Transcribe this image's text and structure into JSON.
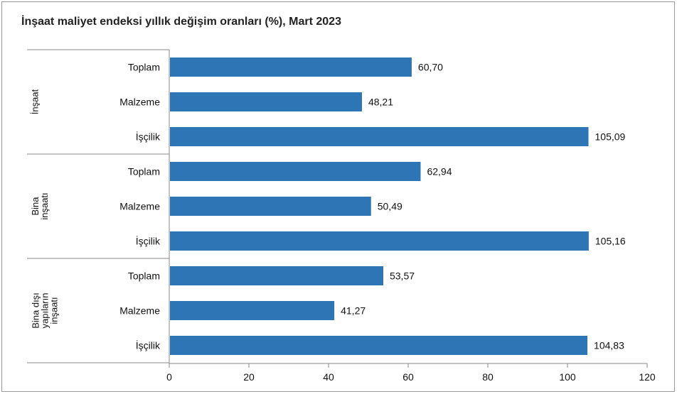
{
  "chart_data": {
    "type": "bar",
    "orientation": "horizontal",
    "title": "İnşaat maliyet endeksi yıllık değişim oranları (%), Mart 2023",
    "xlim": [
      0,
      120
    ],
    "xticks": [
      "0",
      "20",
      "40",
      "60",
      "80",
      "100",
      "120"
    ],
    "grid": false,
    "bar_color": "#2e75b6",
    "groups": [
      {
        "name_lines": [
          "İnşaat"
        ],
        "bars": [
          {
            "label": "Toplam",
            "value": 60.7,
            "display": "60,70"
          },
          {
            "label": "Malzeme",
            "value": 48.21,
            "display": "48,21"
          },
          {
            "label": "İşçilik",
            "value": 105.09,
            "display": "105,09"
          }
        ]
      },
      {
        "name_lines": [
          "Bina",
          "inşaatı"
        ],
        "bars": [
          {
            "label": "Toplam",
            "value": 62.94,
            "display": "62,94"
          },
          {
            "label": "Malzeme",
            "value": 50.49,
            "display": "50,49"
          },
          {
            "label": "İşçilik",
            "value": 105.16,
            "display": "105,16"
          }
        ]
      },
      {
        "name_lines": [
          "Bina dışı",
          "yapıların",
          "inşaatı"
        ],
        "bars": [
          {
            "label": "Toplam",
            "value": 53.57,
            "display": "53,57"
          },
          {
            "label": "Malzeme",
            "value": 41.27,
            "display": "41,27"
          },
          {
            "label": "İşçilik",
            "value": 104.83,
            "display": "104,83"
          }
        ]
      }
    ]
  }
}
